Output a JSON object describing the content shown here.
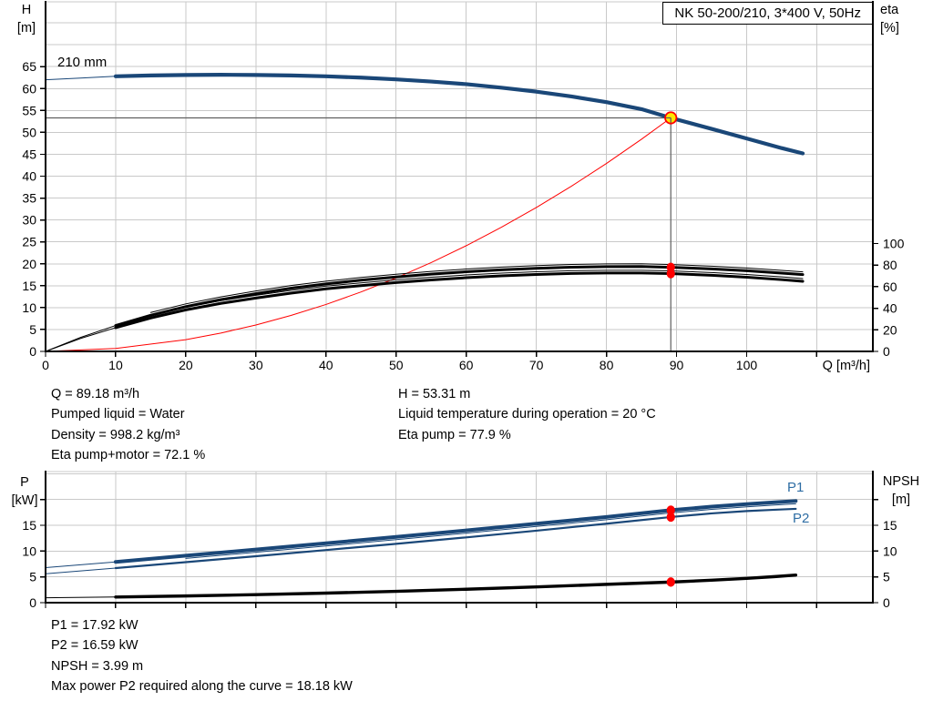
{
  "page_bg": "#ffffff",
  "colors": {
    "blue": "#1a4778",
    "blue_label": "#2e6da4",
    "black": "#000000",
    "red": "#ff0000",
    "yellow": "#ffe600",
    "grid": "#c9c9c9",
    "ref_line": "#5f5f5f",
    "axis": "#000000"
  },
  "chart_data": [
    {
      "id": "head-chart",
      "type": "line",
      "title": "NK 50-200/210, 3*400 V, 50Hz",
      "impeller_label": "210 mm",
      "x_axis": {
        "unit_label": "Q [m³/h]",
        "lim": [
          0,
          118
        ],
        "tick_step": 10,
        "labeled_ticks": [
          0,
          10,
          20,
          30,
          40,
          50,
          60,
          70,
          80,
          90,
          100
        ],
        "extra_ticks": [
          110
        ],
        "grid": true
      },
      "y_left": {
        "name": "H",
        "unit": "[m]",
        "lim": [
          0,
          79.8
        ],
        "grid_step": 5,
        "labeled_ticks": [
          0,
          5,
          10,
          15,
          20,
          25,
          30,
          35,
          40,
          45,
          50,
          55,
          60,
          65
        ]
      },
      "y_right": {
        "name": "eta",
        "unit": "[%]",
        "lim": [
          0,
          324
        ],
        "labeled_ticks": [
          0,
          20,
          40,
          60,
          80,
          100
        ],
        "extra_ticks": []
      },
      "series": [
        {
          "name": "system-curve",
          "axis": "left",
          "color": "red",
          "width": 1,
          "thick_from": null,
          "points": [
            [
              0,
              0
            ],
            [
              10,
              0.67
            ],
            [
              20,
              2.68
            ],
            [
              25,
              4.19
            ],
            [
              30,
              6.03
            ],
            [
              35,
              8.21
            ],
            [
              40,
              10.72
            ],
            [
              45,
              13.57
            ],
            [
              50,
              16.76
            ],
            [
              55,
              20.28
            ],
            [
              60,
              24.13
            ],
            [
              65,
              28.32
            ],
            [
              70,
              32.84
            ],
            [
              75,
              37.7
            ],
            [
              80,
              42.9
            ],
            [
              85,
              48.43
            ],
            [
              89.18,
              53.31
            ]
          ]
        },
        {
          "name": "eta-pump-curve",
          "axis": "right",
          "color": "black",
          "width": 3,
          "thick_from": 10,
          "band_offset": -3,
          "points": [
            [
              0,
              0
            ],
            [
              5,
              13
            ],
            [
              10,
              24
            ],
            [
              15,
              33.5
            ],
            [
              20,
              41.5
            ],
            [
              25,
              48
            ],
            [
              30,
              53.5
            ],
            [
              35,
              58.5
            ],
            [
              40,
              62.5
            ],
            [
              45,
              66
            ],
            [
              50,
              69
            ],
            [
              55,
              71.6
            ],
            [
              60,
              73.8
            ],
            [
              65,
              75.6
            ],
            [
              70,
              77
            ],
            [
              75,
              78
            ],
            [
              80,
              78.6
            ],
            [
              85,
              78.7
            ],
            [
              89.18,
              77.9
            ],
            [
              95,
              76.5
            ],
            [
              100,
              74.8
            ],
            [
              105,
              72.6
            ],
            [
              108,
              71.2
            ]
          ]
        },
        {
          "name": "eta-pump-motor-curve",
          "axis": "right",
          "color": "black",
          "width": 3,
          "thick_from": 10,
          "band_offset": -3,
          "points": [
            [
              0,
              0
            ],
            [
              5,
              12
            ],
            [
              10,
              22
            ],
            [
              15,
              31
            ],
            [
              20,
              38.5
            ],
            [
              25,
              44.5
            ],
            [
              30,
              49.5
            ],
            [
              35,
              54
            ],
            [
              40,
              58
            ],
            [
              45,
              61
            ],
            [
              50,
              63.8
            ],
            [
              55,
              66.2
            ],
            [
              60,
              68.3
            ],
            [
              65,
              70
            ],
            [
              70,
              71.3
            ],
            [
              75,
              72.2
            ],
            [
              80,
              72.7
            ],
            [
              85,
              72.7
            ],
            [
              89.18,
              72.1
            ],
            [
              95,
              70.6
            ],
            [
              100,
              68.8
            ],
            [
              105,
              66.5
            ],
            [
              108,
              65
            ]
          ]
        },
        {
          "name": "head-curve-210mm",
          "axis": "left",
          "color": "blue",
          "width": 4.2,
          "thick_from": 10,
          "points": [
            [
              0,
              62.0
            ],
            [
              5,
              62.4
            ],
            [
              10,
              62.8
            ],
            [
              15,
              63.0
            ],
            [
              20,
              63.1
            ],
            [
              25,
              63.15
            ],
            [
              30,
              63.1
            ],
            [
              35,
              63.0
            ],
            [
              40,
              62.8
            ],
            [
              45,
              62.5
            ],
            [
              50,
              62.1
            ],
            [
              55,
              61.6
            ],
            [
              60,
              61.0
            ],
            [
              65,
              60.2
            ],
            [
              70,
              59.3
            ],
            [
              75,
              58.2
            ],
            [
              80,
              56.9
            ],
            [
              85,
              55.3
            ],
            [
              89.18,
              53.31
            ],
            [
              95,
              50.8
            ],
            [
              100,
              48.6
            ],
            [
              105,
              46.4
            ],
            [
              108,
              45.2
            ]
          ]
        }
      ],
      "ref_lines": {
        "h_value": 53.31,
        "q_value": 89.18
      },
      "duty_point": {
        "q": 89.18,
        "h": 53.31
      },
      "marker_points": [
        {
          "name": "eta-pump-point",
          "q": 89.18,
          "value": 77.9,
          "axis": "right"
        },
        {
          "name": "eta-pump-motor-point",
          "q": 89.18,
          "value": 72.1,
          "axis": "right"
        }
      ]
    },
    {
      "id": "power-npsh-chart",
      "type": "line",
      "x_axis": {
        "unit_label": "",
        "lim": [
          0,
          118
        ],
        "tick_step": 10,
        "labeled_ticks": [],
        "extra_ticks": [
          0,
          10,
          20,
          30,
          40,
          50,
          60,
          70,
          80,
          90,
          100,
          110
        ],
        "grid": true
      },
      "y_left": {
        "name": "P",
        "unit": "[kW]",
        "lim": [
          0,
          25.4
        ],
        "grid_step": 5,
        "labeled_ticks": [
          0,
          5,
          10,
          15
        ],
        "extra_ticks": [
          20
        ]
      },
      "y_right": {
        "name": "NPSH",
        "unit": "[m]",
        "lim": [
          0,
          25.4
        ],
        "labeled_ticks": [
          0,
          5,
          10,
          15
        ],
        "extra_ticks": [
          20
        ]
      },
      "series": [
        {
          "name": "npsh-curve",
          "axis": "right",
          "color": "black",
          "width": 3.4,
          "thick_from": 10,
          "points": [
            [
              0,
              0.95
            ],
            [
              10,
              1.1
            ],
            [
              20,
              1.3
            ],
            [
              30,
              1.55
            ],
            [
              40,
              1.85
            ],
            [
              50,
              2.2
            ],
            [
              60,
              2.6
            ],
            [
              70,
              3.05
            ],
            [
              80,
              3.55
            ],
            [
              89.18,
              3.99
            ],
            [
              95,
              4.35
            ],
            [
              100,
              4.7
            ],
            [
              104,
              5.05
            ],
            [
              107,
              5.35
            ]
          ]
        },
        {
          "name": "p2-curve",
          "axis": "left",
          "color": "blue",
          "width": 2.2,
          "thick_from": 10,
          "points": [
            [
              0,
              5.6
            ],
            [
              10,
              6.7
            ],
            [
              20,
              7.85
            ],
            [
              30,
              9.0
            ],
            [
              40,
              10.2
            ],
            [
              50,
              11.4
            ],
            [
              60,
              12.65
            ],
            [
              70,
              13.95
            ],
            [
              80,
              15.3
            ],
            [
              89.18,
              16.59
            ],
            [
              95,
              17.3
            ],
            [
              100,
              17.75
            ],
            [
              104,
              18.0
            ],
            [
              107,
              18.18
            ]
          ]
        },
        {
          "name": "p1-curve",
          "axis": "left",
          "color": "blue",
          "width": 4,
          "thick_from": 10,
          "band_offset": 3,
          "points": [
            [
              0,
              6.8
            ],
            [
              10,
              7.9
            ],
            [
              20,
              9.1
            ],
            [
              30,
              10.3
            ],
            [
              40,
              11.5
            ],
            [
              50,
              12.75
            ],
            [
              60,
              14.0
            ],
            [
              70,
              15.3
            ],
            [
              80,
              16.6
            ],
            [
              89.18,
              17.92
            ],
            [
              95,
              18.6
            ],
            [
              100,
              19.1
            ],
            [
              104,
              19.45
            ],
            [
              107,
              19.7
            ]
          ]
        }
      ],
      "curve_labels": [
        {
          "text": "P1"
        },
        {
          "text": "P2"
        }
      ],
      "marker_points": [
        {
          "name": "p1-point",
          "q": 89.18,
          "value": 17.92,
          "axis": "left"
        },
        {
          "name": "p2-point",
          "q": 89.18,
          "value": 16.59,
          "axis": "left"
        },
        {
          "name": "npsh-point",
          "q": 89.18,
          "value": 3.99,
          "axis": "right"
        }
      ]
    }
  ],
  "info_top_left": {
    "line1": "Q = 89.18 m³/h",
    "line2": "Pumped liquid = Water",
    "line3": "Density = 998.2 kg/m³",
    "line4": "Eta pump+motor = 72.1 %"
  },
  "info_top_right": {
    "line1": "H = 53.31 m",
    "line2": "Liquid temperature during operation = 20 °C",
    "line3": "Eta pump = 77.9 %"
  },
  "info_bottom": {
    "line1": "P1 = 17.92 kW",
    "line2": "P2 = 16.59 kW",
    "line3": "NPSH = 3.99 m",
    "line4": "Max power P2 required along the curve = 18.18 kW"
  }
}
